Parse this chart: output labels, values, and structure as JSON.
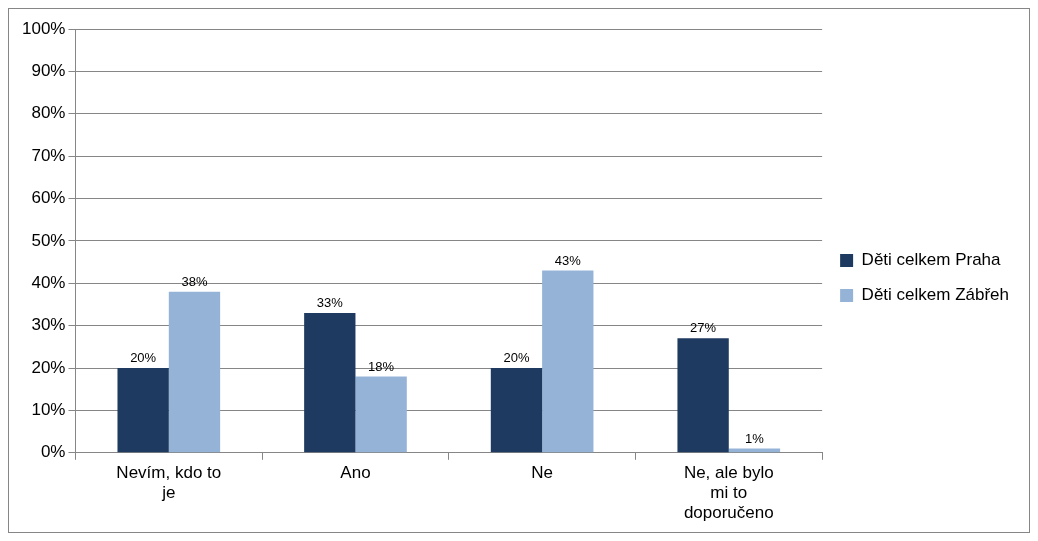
{
  "chart_data": {
    "type": "bar",
    "categories": [
      "Nevím, kdo to je",
      "Ano",
      "Ne",
      "Ne, ale bylo mi to doporučeno"
    ],
    "series": [
      {
        "name": "Děti celkem Praha",
        "color": "#1f3a60",
        "values": [
          20,
          33,
          20,
          27
        ],
        "value_labels": [
          "20%",
          "33%",
          "20%",
          "27%"
        ]
      },
      {
        "name": "Děti celkem Zábřeh",
        "color": "#95b3d7",
        "values": [
          38,
          18,
          43,
          1
        ],
        "value_labels": [
          "38%",
          "18%",
          "43%",
          "1%"
        ]
      }
    ],
    "ylim": [
      0,
      100
    ],
    "yticks": [
      {
        "value": 0,
        "label": "0%"
      },
      {
        "value": 10,
        "label": "10%"
      },
      {
        "value": 20,
        "label": "20%"
      },
      {
        "value": 30,
        "label": "30%"
      },
      {
        "value": 40,
        "label": "40%"
      },
      {
        "value": 50,
        "label": "50%"
      },
      {
        "value": 60,
        "label": "60%"
      },
      {
        "value": 70,
        "label": "70%"
      },
      {
        "value": 80,
        "label": "80%"
      },
      {
        "value": 90,
        "label": "90%"
      },
      {
        "value": 100,
        "label": "100%"
      }
    ],
    "grid": "y",
    "legend": "right"
  }
}
